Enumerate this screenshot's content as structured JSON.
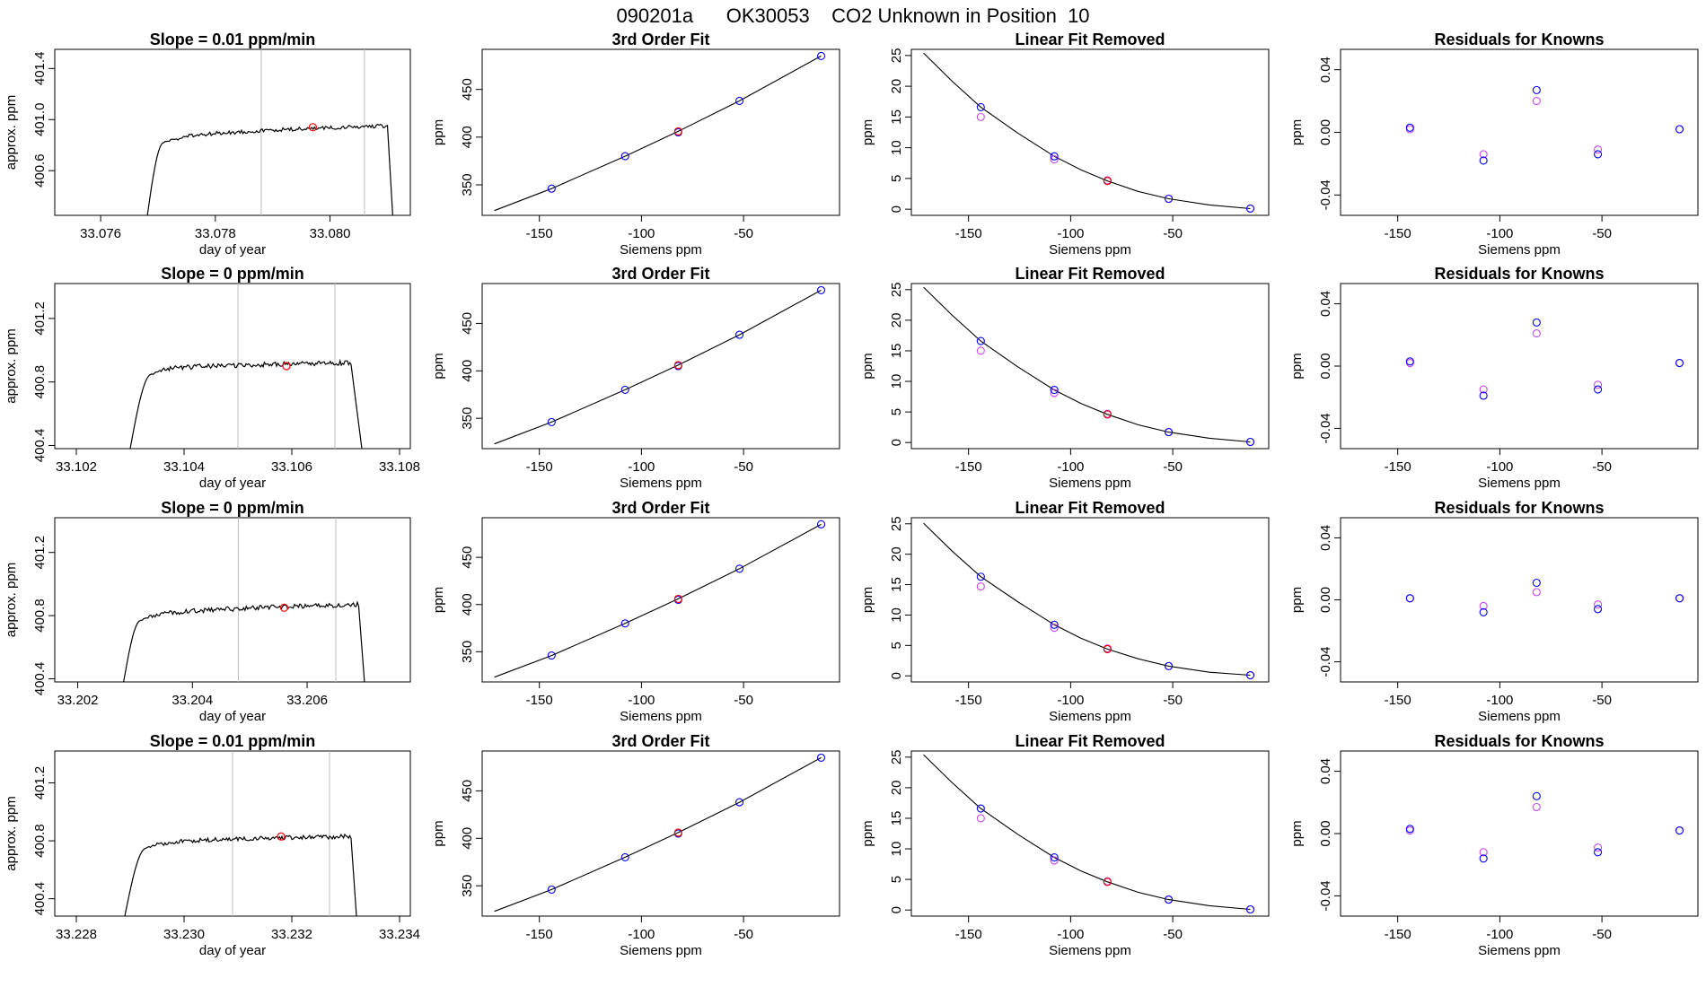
{
  "main_title": "090201a      OK30053    CO2 Unknown in Position  10",
  "colors": {
    "axis": "#000000",
    "series_line": "#000000",
    "knowns_fit": "#0000ff",
    "knowns_alt": "#cc44ee",
    "unknown": "#ff0000",
    "marker_lines": "#bbbbbb"
  },
  "chart_data": [
    {
      "type": "line",
      "row": 1,
      "col": 1,
      "title": "Slope =  0.01  ppm/min",
      "xlabel": "day of year",
      "ylabel": "approx. ppm",
      "xlim": [
        33.0752,
        33.0814
      ],
      "ylim": [
        400.25,
        401.55
      ],
      "xticks": [
        33.076,
        33.078,
        33.08
      ],
      "xticklabels": [
        "33.076",
        "33.078",
        "33.080"
      ],
      "yticks": [
        400.6,
        401.0,
        401.4
      ],
      "yticklabels": [
        "400.6",
        "401.0",
        "401.4"
      ],
      "vlines": [
        33.0788,
        33.0806
      ],
      "trace": {
        "start": 33.0768,
        "rise_end": 33.0771,
        "plateau_start": 33.0774,
        "fall_start": 33.081,
        "end": 33.0811,
        "plateau_start_value": 400.85,
        "plateau_end_value": 400.95,
        "base": 400.2
      },
      "unknown_point": {
        "x": 33.0797,
        "y": 400.94
      }
    },
    {
      "type": "scatter",
      "row": 1,
      "col": 2,
      "title": "3rd Order Fit",
      "xlabel": "Siemens ppm",
      "ylabel": "ppm",
      "xlim": [
        -178,
        -3
      ],
      "ylim": [
        318,
        492
      ],
      "xticks": [
        -150,
        -100,
        -50
      ],
      "xticklabels": [
        "-150",
        "-100",
        "-50"
      ],
      "yticks": [
        350,
        400,
        450
      ],
      "yticklabels": [
        "350",
        "400",
        "450"
      ],
      "fit_curve": {
        "x": [
          -172,
          -144,
          -108,
          -82,
          -52,
          -12
        ],
        "y": [
          323,
          346,
          380,
          406,
          438,
          485
        ]
      },
      "knowns": {
        "x": [
          -144,
          -108,
          -82,
          -52,
          -12
        ],
        "y": [
          346,
          380,
          405,
          438,
          485
        ]
      },
      "unknown_point": {
        "x": -82,
        "y": 406
      }
    },
    {
      "type": "scatter",
      "row": 1,
      "col": 3,
      "title": "Linear Fit Removed",
      "xlabel": "Siemens ppm",
      "ylabel": "ppm",
      "xlim": [
        -178,
        -3
      ],
      "ylim": [
        -1,
        26
      ],
      "xticks": [
        -150,
        -100,
        -50
      ],
      "xticklabels": [
        "-150",
        "-100",
        "-50"
      ],
      "yticks": [
        0,
        5,
        10,
        15,
        20,
        25
      ],
      "yticklabels": [
        "0",
        "5",
        "10",
        "15",
        "20",
        "25"
      ],
      "fit_curve": {
        "x": [
          -172,
          -158,
          -144,
          -126,
          -108,
          -95,
          -82,
          -67,
          -52,
          -32,
          -12
        ],
        "y": [
          25.4,
          20.8,
          16.6,
          12.4,
          8.6,
          6.4,
          4.6,
          2.9,
          1.7,
          0.7,
          0.1
        ]
      },
      "knowns": {
        "x": [
          -144,
          -108,
          -82,
          -52,
          -12
        ],
        "y": [
          16.6,
          8.6,
          4.6,
          1.7,
          0.1
        ]
      },
      "knowns_alt": {
        "x": [
          -144,
          -108,
          -82,
          -52,
          -12
        ],
        "y": [
          15.0,
          8.1,
          4.7,
          1.7,
          0.1
        ]
      },
      "unknown_point": {
        "x": -82,
        "y": 4.6
      }
    },
    {
      "type": "scatter",
      "row": 1,
      "col": 4,
      "title": "Residuals for Knowns",
      "xlabel": "Siemens ppm",
      "ylabel": "ppm",
      "xlim": [
        -178,
        -3
      ],
      "ylim": [
        -0.053,
        0.053
      ],
      "xticks": [
        -150,
        -100,
        -50
      ],
      "xticklabels": [
        "-150",
        "-100",
        "-50"
      ],
      "yticks": [
        -0.04,
        0.0,
        0.04
      ],
      "yticklabels": [
        "-0.04",
        "0.00",
        "0.04"
      ],
      "knowns": {
        "x": [
          -144,
          -108,
          -82,
          -52,
          -12
        ],
        "y": [
          0.003,
          -0.018,
          0.027,
          -0.014,
          0.002
        ]
      },
      "knowns_alt": {
        "x": [
          -144,
          -108,
          -82,
          -52,
          -12
        ],
        "y": [
          0.002,
          -0.014,
          0.02,
          -0.011,
          0.002
        ]
      }
    },
    {
      "type": "line",
      "row": 2,
      "col": 1,
      "title": "Slope =  0  ppm/min",
      "xlabel": "day of year",
      "ylabel": "approx. ppm",
      "xlim": [
        33.1016,
        33.1082
      ],
      "ylim": [
        400.38,
        401.42
      ],
      "xticks": [
        33.102,
        33.104,
        33.106,
        33.108
      ],
      "xticklabels": [
        "33.102",
        "33.104",
        "33.106",
        "33.108"
      ],
      "yticks": [
        400.4,
        400.8,
        401.2
      ],
      "yticklabels": [
        "400.4",
        "400.8",
        "401.2"
      ],
      "vlines": [
        33.105,
        33.1068
      ],
      "trace": {
        "start": 33.103,
        "rise_end": 33.1034,
        "plateau_start": 33.1037,
        "fall_start": 33.1071,
        "end": 33.1073,
        "plateau_start_value": 400.88,
        "plateau_end_value": 400.92,
        "base": 400.38
      },
      "unknown_point": {
        "x": 33.1059,
        "y": 400.9
      }
    },
    {
      "type": "scatter",
      "row": 2,
      "col": 2,
      "title": "3rd Order Fit",
      "xlabel": "Siemens ppm",
      "ylabel": "ppm",
      "xlim": [
        -178,
        -3
      ],
      "ylim": [
        318,
        492
      ],
      "xticks": [
        -150,
        -100,
        -50
      ],
      "xticklabels": [
        "-150",
        "-100",
        "-50"
      ],
      "yticks": [
        350,
        400,
        450
      ],
      "yticklabels": [
        "350",
        "400",
        "450"
      ],
      "fit_curve": {
        "x": [
          -172,
          -144,
          -108,
          -82,
          -52,
          -12
        ],
        "y": [
          323,
          346,
          380,
          406,
          438,
          485
        ]
      },
      "knowns": {
        "x": [
          -144,
          -108,
          -82,
          -52,
          -12
        ],
        "y": [
          346,
          380,
          405,
          438,
          485
        ]
      },
      "unknown_point": {
        "x": -82,
        "y": 406
      }
    },
    {
      "type": "scatter",
      "row": 2,
      "col": 3,
      "title": "Linear Fit Removed",
      "xlabel": "Siemens ppm",
      "ylabel": "ppm",
      "xlim": [
        -178,
        -3
      ],
      "ylim": [
        -1,
        26
      ],
      "xticks": [
        -150,
        -100,
        -50
      ],
      "xticklabels": [
        "-150",
        "-100",
        "-50"
      ],
      "yticks": [
        0,
        5,
        10,
        15,
        20,
        25
      ],
      "yticklabels": [
        "0",
        "5",
        "10",
        "15",
        "20",
        "25"
      ],
      "fit_curve": {
        "x": [
          -172,
          -158,
          -144,
          -126,
          -108,
          -95,
          -82,
          -67,
          -52,
          -32,
          -12
        ],
        "y": [
          25.4,
          20.8,
          16.6,
          12.4,
          8.6,
          6.4,
          4.6,
          2.9,
          1.7,
          0.7,
          0.1
        ]
      },
      "knowns": {
        "x": [
          -144,
          -108,
          -82,
          -52,
          -12
        ],
        "y": [
          16.6,
          8.6,
          4.6,
          1.7,
          0.1
        ]
      },
      "knowns_alt": {
        "x": [
          -144,
          -108,
          -82,
          -52,
          -12
        ],
        "y": [
          15.0,
          8.1,
          4.7,
          1.7,
          0.1
        ]
      },
      "unknown_point": {
        "x": -82,
        "y": 4.6
      }
    },
    {
      "type": "scatter",
      "row": 2,
      "col": 4,
      "title": "Residuals for Knowns",
      "xlabel": "Siemens ppm",
      "ylabel": "ppm",
      "xlim": [
        -178,
        -3
      ],
      "ylim": [
        -0.053,
        0.053
      ],
      "xticks": [
        -150,
        -100,
        -50
      ],
      "xticklabels": [
        "-150",
        "-100",
        "-50"
      ],
      "yticks": [
        -0.04,
        0.0,
        0.04
      ],
      "yticklabels": [
        "-0.04",
        "0.00",
        "0.04"
      ],
      "knowns": {
        "x": [
          -144,
          -108,
          -82,
          -52,
          -12
        ],
        "y": [
          0.003,
          -0.019,
          0.028,
          -0.015,
          0.002
        ]
      },
      "knowns_alt": {
        "x": [
          -144,
          -108,
          -82,
          -52,
          -12
        ],
        "y": [
          0.002,
          -0.015,
          0.021,
          -0.012,
          0.002
        ]
      }
    },
    {
      "type": "line",
      "row": 3,
      "col": 1,
      "title": "Slope =  0  ppm/min",
      "xlabel": "day of year",
      "ylabel": "approx. ppm",
      "xlim": [
        33.2016,
        33.2078
      ],
      "ylim": [
        400.38,
        401.42
      ],
      "xticks": [
        33.202,
        33.204,
        33.206
      ],
      "xticklabels": [
        "33.202",
        "33.204",
        "33.206"
      ],
      "yticks": [
        400.4,
        400.8,
        401.2
      ],
      "yticklabels": [
        "400.4",
        "400.8",
        "401.2"
      ],
      "vlines": [
        33.2048,
        33.2065
      ],
      "trace": {
        "start": 33.2028,
        "rise_end": 33.2031,
        "plateau_start": 33.2034,
        "fall_start": 33.2069,
        "end": 33.207,
        "plateau_start_value": 400.8,
        "plateau_end_value": 400.87,
        "base": 400.38
      },
      "unknown_point": {
        "x": 33.2056,
        "y": 400.85
      }
    },
    {
      "type": "scatter",
      "row": 3,
      "col": 2,
      "title": "3rd Order Fit",
      "xlabel": "Siemens ppm",
      "ylabel": "ppm",
      "xlim": [
        -178,
        -3
      ],
      "ylim": [
        318,
        492
      ],
      "xticks": [
        -150,
        -100,
        -50
      ],
      "xticklabels": [
        "-150",
        "-100",
        "-50"
      ],
      "yticks": [
        350,
        400,
        450
      ],
      "yticklabels": [
        "350",
        "400",
        "450"
      ],
      "fit_curve": {
        "x": [
          -172,
          -144,
          -108,
          -82,
          -52,
          -12
        ],
        "y": [
          323,
          346,
          380,
          406,
          438,
          485
        ]
      },
      "knowns": {
        "x": [
          -144,
          -108,
          -82,
          -52,
          -12
        ],
        "y": [
          346,
          380,
          405,
          438,
          485
        ]
      },
      "unknown_point": {
        "x": -82,
        "y": 406
      }
    },
    {
      "type": "scatter",
      "row": 3,
      "col": 3,
      "title": "Linear Fit Removed",
      "xlabel": "Siemens ppm",
      "ylabel": "ppm",
      "xlim": [
        -178,
        -3
      ],
      "ylim": [
        -1,
        26
      ],
      "xticks": [
        -150,
        -100,
        -50
      ],
      "xticklabels": [
        "-150",
        "-100",
        "-50"
      ],
      "yticks": [
        0,
        5,
        10,
        15,
        20,
        25
      ],
      "yticklabels": [
        "0",
        "5",
        "10",
        "15",
        "20",
        "25"
      ],
      "fit_curve": {
        "x": [
          -172,
          -158,
          -144,
          -126,
          -108,
          -95,
          -82,
          -67,
          -52,
          -32,
          -12
        ],
        "y": [
          25.1,
          20.5,
          16.3,
          12.2,
          8.4,
          6.2,
          4.4,
          2.8,
          1.6,
          0.6,
          0.1
        ]
      },
      "knowns": {
        "x": [
          -144,
          -108,
          -82,
          -52,
          -12
        ],
        "y": [
          16.3,
          8.4,
          4.4,
          1.6,
          0.1
        ]
      },
      "knowns_alt": {
        "x": [
          -144,
          -108,
          -82,
          -52,
          -12
        ],
        "y": [
          14.7,
          7.9,
          4.5,
          1.6,
          0.1
        ]
      },
      "unknown_point": {
        "x": -82,
        "y": 4.4
      }
    },
    {
      "type": "scatter",
      "row": 3,
      "col": 4,
      "title": "Residuals for Knowns",
      "xlabel": "Siemens ppm",
      "ylabel": "ppm",
      "xlim": [
        -178,
        -3
      ],
      "ylim": [
        -0.053,
        0.053
      ],
      "xticks": [
        -150,
        -100,
        -50
      ],
      "xticklabels": [
        "-150",
        "-100",
        "-50"
      ],
      "yticks": [
        -0.04,
        0.0,
        0.04
      ],
      "yticklabels": [
        "-0.04",
        "0.00",
        "0.04"
      ],
      "knowns": {
        "x": [
          -144,
          -108,
          -82,
          -52,
          -12
        ],
        "y": [
          0.001,
          -0.008,
          0.011,
          -0.006,
          0.001
        ]
      },
      "knowns_alt": {
        "x": [
          -144,
          -108,
          -82,
          -52,
          -12
        ],
        "y": [
          0.001,
          -0.004,
          0.005,
          -0.003,
          0.001
        ]
      }
    },
    {
      "type": "line",
      "row": 4,
      "col": 1,
      "title": "Slope =  0.01  ppm/min",
      "xlabel": "day of year",
      "ylabel": "approx. ppm",
      "xlim": [
        33.2276,
        33.2342
      ],
      "ylim": [
        400.28,
        401.42
      ],
      "xticks": [
        33.228,
        33.23,
        33.232,
        33.234
      ],
      "xticklabels": [
        "33.228",
        "33.230",
        "33.232",
        "33.234"
      ],
      "yticks": [
        400.4,
        400.8,
        401.2
      ],
      "yticklabels": [
        "400.4",
        "400.8",
        "401.2"
      ],
      "vlines": [
        33.2309,
        33.2327
      ],
      "trace": {
        "start": 33.2289,
        "rise_end": 33.2293,
        "plateau_start": 33.2296,
        "fall_start": 33.2331,
        "end": 33.2332,
        "plateau_start_value": 400.78,
        "plateau_end_value": 400.83,
        "base": 400.28
      },
      "unknown_point": {
        "x": 33.2318,
        "y": 400.83
      }
    },
    {
      "type": "scatter",
      "row": 4,
      "col": 2,
      "title": "3rd Order Fit",
      "xlabel": "Siemens ppm",
      "ylabel": "ppm",
      "xlim": [
        -178,
        -3
      ],
      "ylim": [
        318,
        492
      ],
      "xticks": [
        -150,
        -100,
        -50
      ],
      "xticklabels": [
        "-150",
        "-100",
        "-50"
      ],
      "yticks": [
        350,
        400,
        450
      ],
      "yticklabels": [
        "350",
        "400",
        "450"
      ],
      "fit_curve": {
        "x": [
          -172,
          -144,
          -108,
          -82,
          -52,
          -12
        ],
        "y": [
          323,
          346,
          380,
          406,
          438,
          485
        ]
      },
      "knowns": {
        "x": [
          -144,
          -108,
          -82,
          -52,
          -12
        ],
        "y": [
          346,
          380,
          405,
          438,
          485
        ]
      },
      "unknown_point": {
        "x": -82,
        "y": 406
      }
    },
    {
      "type": "scatter",
      "row": 4,
      "col": 3,
      "title": "Linear Fit Removed",
      "xlabel": "Siemens ppm",
      "ylabel": "ppm",
      "xlim": [
        -178,
        -3
      ],
      "ylim": [
        -1,
        26
      ],
      "xticks": [
        -150,
        -100,
        -50
      ],
      "xticklabels": [
        "-150",
        "-100",
        "-50"
      ],
      "yticks": [
        0,
        5,
        10,
        15,
        20,
        25
      ],
      "yticklabels": [
        "0",
        "5",
        "10",
        "15",
        "20",
        "25"
      ],
      "fit_curve": {
        "x": [
          -172,
          -158,
          -144,
          -126,
          -108,
          -95,
          -82,
          -67,
          -52,
          -32,
          -12
        ],
        "y": [
          25.4,
          20.8,
          16.6,
          12.4,
          8.6,
          6.4,
          4.6,
          2.9,
          1.7,
          0.7,
          0.1
        ]
      },
      "knowns": {
        "x": [
          -144,
          -108,
          -82,
          -52,
          -12
        ],
        "y": [
          16.6,
          8.6,
          4.6,
          1.7,
          0.1
        ]
      },
      "knowns_alt": {
        "x": [
          -144,
          -108,
          -82,
          -52,
          -12
        ],
        "y": [
          15.0,
          8.1,
          4.7,
          1.7,
          0.1
        ]
      },
      "unknown_point": {
        "x": -82,
        "y": 4.6
      }
    },
    {
      "type": "scatter",
      "row": 4,
      "col": 4,
      "title": "Residuals for Knowns",
      "xlabel": "Siemens ppm",
      "ylabel": "ppm",
      "xlim": [
        -178,
        -3
      ],
      "ylim": [
        -0.053,
        0.053
      ],
      "xticks": [
        -150,
        -100,
        -50
      ],
      "xticklabels": [
        "-150",
        "-100",
        "-50"
      ],
      "yticks": [
        -0.04,
        0.0,
        0.04
      ],
      "yticklabels": [
        "-0.04",
        "0.00",
        "0.04"
      ],
      "knowns": {
        "x": [
          -144,
          -108,
          -82,
          -52,
          -12
        ],
        "y": [
          0.003,
          -0.016,
          0.024,
          -0.012,
          0.002
        ]
      },
      "knowns_alt": {
        "x": [
          -144,
          -108,
          -82,
          -52,
          -12
        ],
        "y": [
          0.002,
          -0.012,
          0.017,
          -0.009,
          0.002
        ]
      }
    }
  ]
}
